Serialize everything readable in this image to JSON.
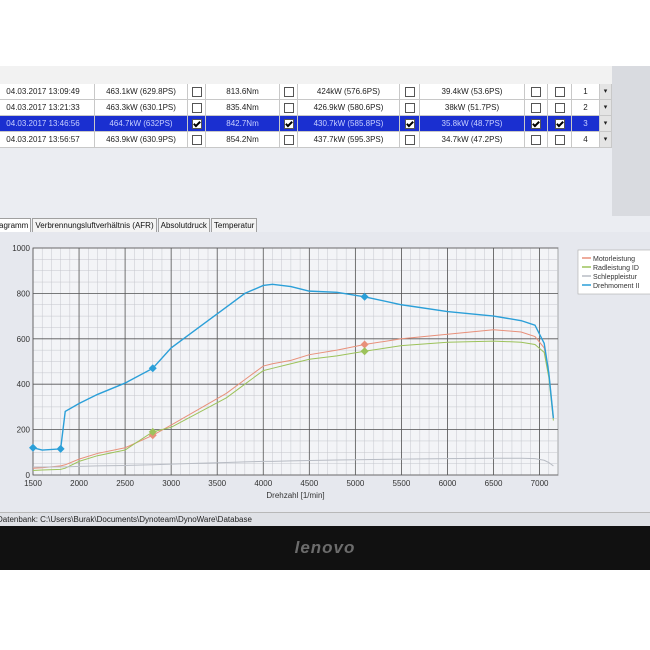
{
  "table": {
    "rows": [
      {
        "cells": [
          "04.03.2017 13:09:49",
          "463.1kW (629.8PS)",
          "813.6Nm",
          "424kW (576.6PS)",
          "39.4kW (53.6PS)",
          "1"
        ],
        "checked": false,
        "selected": false
      },
      {
        "cells": [
          "04.03.2017 13:21:33",
          "463.3kW (630.1PS)",
          "835.4Nm",
          "426.9kW (580.6PS)",
          "38kW (51.7PS)",
          "2"
        ],
        "checked": false,
        "selected": false
      },
      {
        "cells": [
          "04.03.2017 13:46:56",
          "464.7kW (632PS)",
          "842.7Nm",
          "430.7kW (585.8PS)",
          "35.8kW (48.7PS)",
          "3"
        ],
        "checked": true,
        "selected": true
      },
      {
        "cells": [
          "04.03.2017 13:56:57",
          "463.9kW (630.9PS)",
          "854.2Nm",
          "437.7kW (595.3PS)",
          "34.7kW (47.2PS)",
          "4"
        ],
        "checked": false,
        "selected": false
      }
    ]
  },
  "tabs": [
    "agramm",
    "Verbrennungsluftverhältnis (AFR)",
    "Absolutdruck",
    "Temperatur"
  ],
  "status": "Datenbank: C:\\Users\\Burak\\Documents\\Dynoteam\\DynoWare\\Database",
  "logo": "lenovo",
  "chart_data": {
    "type": "line",
    "x_label": "Drehzahl [1/min]",
    "x": [
      1500,
      1600,
      1800,
      1850,
      2000,
      2200,
      2500,
      2800,
      3000,
      3300,
      3600,
      3800,
      4000,
      4100,
      4300,
      4500,
      4800,
      5100,
      5500,
      6000,
      6500,
      6800,
      6950,
      7050,
      7100,
      7150
    ],
    "series": [
      {
        "name": "Motorleistung",
        "color": "#e8907a",
        "values": [
          30,
          32,
          40,
          45,
          70,
          95,
          120,
          175,
          220,
          290,
          360,
          420,
          480,
          490,
          505,
          530,
          550,
          575,
          600,
          620,
          640,
          630,
          610,
          560,
          450,
          250
        ]
      },
      {
        "name": "Radleistung ID",
        "color": "#9cc25a",
        "values": [
          20,
          22,
          25,
          30,
          60,
          85,
          110,
          190,
          210,
          275,
          340,
          400,
          460,
          470,
          490,
          510,
          525,
          545,
          570,
          585,
          590,
          585,
          575,
          540,
          430,
          240
        ]
      },
      {
        "name": "Schleppleistur",
        "color": "#b8bcc4",
        "values": [
          35,
          35,
          36,
          36,
          38,
          40,
          42,
          45,
          48,
          52,
          55,
          58,
          60,
          60,
          62,
          64,
          66,
          68,
          70,
          72,
          74,
          74,
          72,
          65,
          55,
          40
        ]
      },
      {
        "name": "Drehmoment II",
        "color": "#2b9fd8",
        "values": [
          120,
          110,
          115,
          280,
          315,
          355,
          405,
          470,
          560,
          650,
          740,
          800,
          835,
          840,
          830,
          810,
          805,
          785,
          750,
          720,
          700,
          680,
          660,
          580,
          450,
          250
        ]
      }
    ],
    "xlim": [
      1500,
      7200
    ],
    "xticks": [
      1500,
      2000,
      2500,
      3000,
      3500,
      4000,
      4500,
      5000,
      5500,
      6000,
      6500,
      7000
    ],
    "ylim": [
      0,
      1000
    ],
    "yticks": [
      0,
      200,
      400,
      600,
      800,
      1000
    ],
    "grid": true
  }
}
